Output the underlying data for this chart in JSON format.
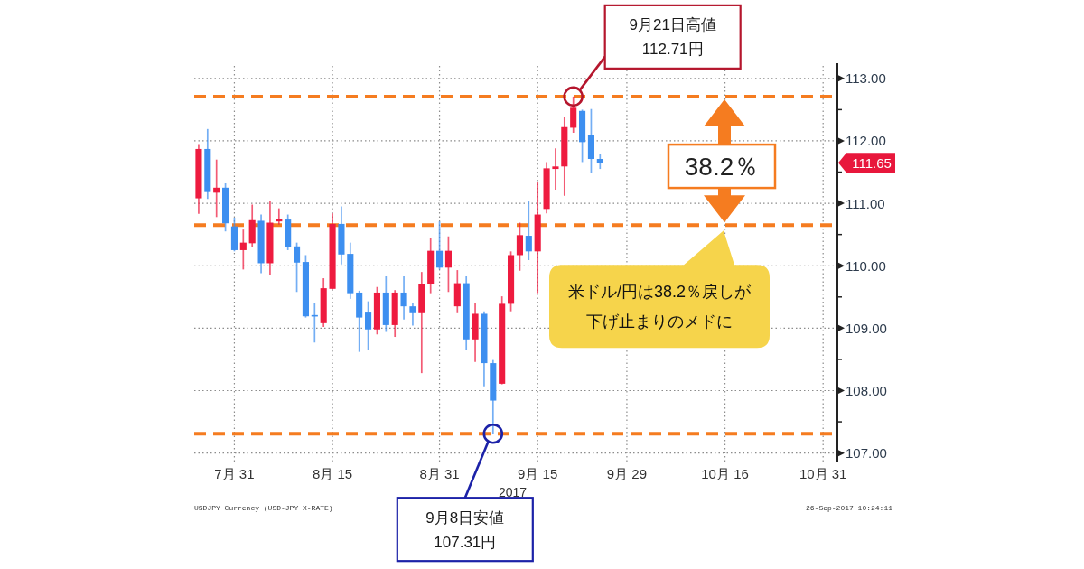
{
  "chart_data": {
    "type": "candlestick",
    "xlabel": "2017",
    "categories": [
      null,
      null,
      null,
      null,
      "7月 31",
      null,
      null,
      null,
      null,
      null,
      null,
      null,
      null,
      null,
      null,
      "8月 15",
      null,
      null,
      null,
      null,
      null,
      null,
      null,
      null,
      null,
      null,
      null,
      "8月 31",
      null,
      null,
      null,
      null,
      null,
      null,
      null,
      null,
      null,
      null,
      "9月 15",
      null,
      null,
      null,
      null,
      null,
      null,
      null,
      null,
      null,
      "9月 29",
      null,
      null,
      null,
      null,
      null,
      null,
      null,
      null,
      null,
      null,
      "10月 16",
      null,
      null,
      null,
      null,
      null,
      null,
      null,
      null,
      null,
      null,
      "10月 31",
      null
    ],
    "ohlc": [
      [
        111.08,
        111.95,
        110.83,
        111.87
      ],
      [
        111.87,
        112.19,
        111.07,
        111.18
      ],
      [
        111.17,
        111.7,
        110.78,
        111.25
      ],
      [
        111.25,
        111.32,
        110.55,
        110.68
      ],
      [
        110.63,
        110.77,
        110.23,
        110.25
      ],
      [
        110.25,
        110.58,
        109.94,
        110.37
      ],
      [
        110.36,
        110.98,
        110.3,
        110.73
      ],
      [
        110.72,
        110.82,
        109.88,
        110.04
      ],
      [
        110.04,
        111.03,
        109.86,
        110.69
      ],
      [
        110.71,
        110.92,
        110.66,
        110.75
      ],
      [
        110.74,
        110.82,
        110.25,
        110.3
      ],
      [
        110.31,
        110.37,
        109.58,
        110.05
      ],
      [
        110.06,
        110.17,
        109.17,
        109.19
      ],
      [
        109.21,
        109.4,
        108.77,
        109.19
      ],
      [
        109.08,
        109.8,
        109.02,
        109.64
      ],
      [
        109.63,
        110.84,
        109.62,
        110.67
      ],
      [
        110.67,
        110.95,
        110.02,
        110.18
      ],
      [
        110.19,
        110.37,
        109.47,
        109.56
      ],
      [
        109.57,
        109.6,
        108.62,
        109.17
      ],
      [
        109.25,
        109.43,
        108.65,
        108.98
      ],
      [
        108.98,
        109.66,
        108.9,
        109.57
      ],
      [
        109.57,
        109.83,
        108.94,
        109.05
      ],
      [
        109.05,
        109.61,
        108.86,
        109.57
      ],
      [
        109.57,
        109.83,
        109.14,
        109.35
      ],
      [
        109.35,
        109.4,
        109.04,
        109.24
      ],
      [
        109.24,
        109.9,
        108.28,
        109.71
      ],
      [
        109.7,
        110.45,
        109.56,
        110.24
      ],
      [
        110.24,
        110.71,
        109.94,
        109.97
      ],
      [
        109.97,
        110.47,
        109.58,
        110.24
      ],
      [
        109.35,
        109.93,
        109.24,
        109.72
      ],
      [
        109.72,
        109.83,
        108.65,
        108.82
      ],
      [
        108.82,
        109.4,
        108.46,
        109.23
      ],
      [
        109.23,
        109.27,
        108.07,
        108.44
      ],
      [
        108.44,
        108.49,
        107.31,
        107.84
      ],
      [
        108.11,
        109.51,
        108.1,
        109.39
      ],
      [
        109.39,
        110.23,
        109.27,
        110.17
      ],
      [
        110.17,
        110.69,
        109.92,
        110.49
      ],
      [
        110.48,
        111.04,
        110.09,
        110.23
      ],
      [
        110.23,
        111.34,
        109.56,
        110.82
      ],
      [
        110.91,
        111.66,
        110.84,
        111.56
      ],
      [
        111.55,
        111.88,
        111.22,
        111.59
      ],
      [
        111.59,
        112.38,
        111.12,
        112.22
      ],
      [
        112.21,
        112.71,
        112.13,
        112.53
      ],
      [
        112.48,
        112.5,
        111.66,
        111.98
      ],
      [
        112.09,
        112.51,
        111.48,
        111.71
      ],
      [
        111.71,
        111.79,
        111.55,
        111.65
      ],
      null,
      null,
      null,
      null,
      null,
      null,
      null,
      null,
      null,
      null,
      null,
      null,
      null,
      null,
      null,
      null,
      null,
      null,
      null,
      null,
      null,
      null,
      null,
      null,
      null,
      null
    ],
    "colors": [
      "#ee1b3f",
      "#3d8ff0",
      "#ee1b3f",
      "#3d8ff0",
      "#3d8ff0",
      "#ee1b3f",
      "#ee1b3f",
      "#3d8ff0",
      "#ee1b3f",
      "#ee1b3f",
      "#3d8ff0",
      "#3d8ff0",
      "#3d8ff0",
      "#3d8ff0",
      "#ee1b3f",
      "#ee1b3f",
      "#3d8ff0",
      "#3d8ff0",
      "#3d8ff0",
      "#3d8ff0",
      "#ee1b3f",
      "#3d8ff0",
      "#ee1b3f",
      "#3d8ff0",
      "#3d8ff0",
      "#ee1b3f",
      "#ee1b3f",
      "#3d8ff0",
      "#ee1b3f",
      "#ee1b3f",
      "#3d8ff0",
      "#ee1b3f",
      "#3d8ff0",
      "#3d8ff0",
      "#ee1b3f",
      "#ee1b3f",
      "#ee1b3f",
      "#3d8ff0",
      "#ee1b3f",
      "#ee1b3f",
      "#ee1b3f",
      "#ee1b3f",
      "#ee1b3f",
      "#3d8ff0",
      "#3d8ff0",
      "#3d8ff0",
      null,
      null,
      null,
      null,
      null,
      null,
      null,
      null,
      null,
      null,
      null,
      null,
      null,
      null,
      null,
      null,
      null,
      null,
      null,
      null,
      null,
      null,
      null,
      null,
      null,
      null
    ],
    "ylim": [
      106.85,
      113.2
    ],
    "yticks": [
      {
        "value": 107,
        "label": "107.00"
      },
      {
        "value": 107.5,
        "label": null
      },
      {
        "value": 108,
        "label": "108.00"
      },
      {
        "value": 108.5,
        "label": null
      },
      {
        "value": 109,
        "label": "109.00"
      },
      {
        "value": 109.5,
        "label": null
      },
      {
        "value": 110,
        "label": "110.00"
      },
      {
        "value": 110.5,
        "label": null
      },
      {
        "value": 111,
        "label": "111.00"
      },
      {
        "value": 111.5,
        "label": null
      },
      {
        "value": 112,
        "label": "112.00"
      },
      {
        "value": 112.5,
        "label": null
      },
      {
        "value": 113,
        "label": "113.00"
      }
    ],
    "grid": true,
    "ref_lines": [
      {
        "axis": "y",
        "value": 112.71,
        "color": "#f57c20",
        "line_style": "dashed"
      },
      {
        "axis": "y",
        "value": 110.65,
        "label": "38.2％",
        "color": "#f57c20",
        "line_style": "dashed"
      },
      {
        "axis": "y",
        "value": 107.31,
        "color": "#f57c20",
        "line_style": "dashed"
      }
    ],
    "annotations": [
      {
        "text": "9月21日高値\n112.71円",
        "y": 112.71
      },
      "9月8日安値\n107.31円",
      "111.65",
      "米ドル/円は38.2％戻しが下げ止まりのメドに",
      "USDJPY Currency (USD-JPY X-RATE)",
      "26-Sep-2017 10:24:11"
    ]
  }
}
